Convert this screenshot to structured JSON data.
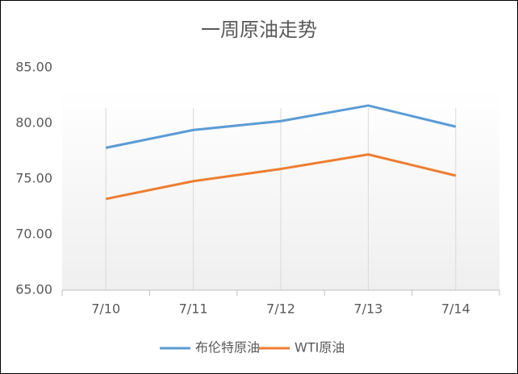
{
  "chart_data": {
    "type": "line",
    "title": "一周原油走势",
    "categories": [
      "7/10",
      "7/11",
      "7/12",
      "7/13",
      "7/14"
    ],
    "series": [
      {
        "name": "布伦特原油",
        "color": "#5b9bd5",
        "values": [
          77.8,
          79.4,
          80.2,
          81.6,
          79.7
        ]
      },
      {
        "name": "WTI原油",
        "color": "#ed7d31",
        "values": [
          73.2,
          74.8,
          75.9,
          77.2,
          75.3
        ]
      }
    ],
    "ylim": [
      65,
      85
    ],
    "yticks": [
      {
        "value": 65,
        "label": "65.00"
      },
      {
        "value": 70,
        "label": "70.00"
      },
      {
        "value": 75,
        "label": "75.00"
      },
      {
        "value": 80,
        "label": "80.00"
      },
      {
        "value": 85,
        "label": "85.00"
      }
    ],
    "grid": true,
    "legend": "bottom"
  }
}
